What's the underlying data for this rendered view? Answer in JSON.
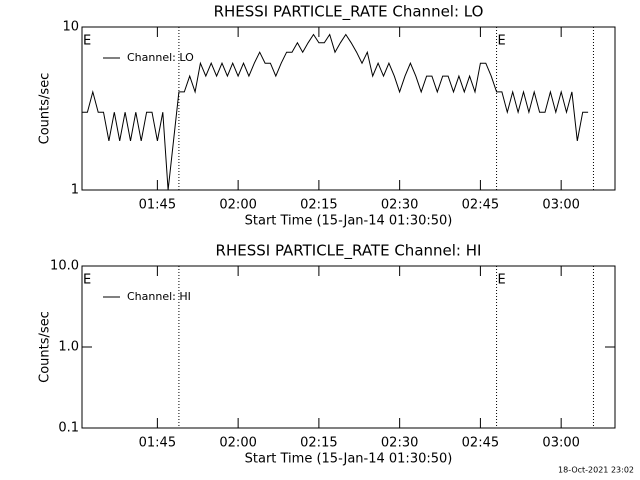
{
  "chart_data": [
    {
      "type": "line",
      "title": "RHESSI PARTICLE_RATE Channel: LO",
      "ylabel": "Counts/sec",
      "xlabel": "Start Time (15-Jan-14 01:30:50)",
      "log_y": true,
      "ylim": [
        1,
        10
      ],
      "yticks": [
        1,
        10
      ],
      "xlim": [
        "01:31",
        "03:10"
      ],
      "xticks": [
        "01:45",
        "02:00",
        "02:15",
        "02:30",
        "02:45",
        "03:00"
      ],
      "vlines": [
        "01:49",
        "02:48",
        "03:06"
      ],
      "annotations": [
        {
          "text": "E",
          "x": "01:31"
        },
        {
          "text": "E",
          "x": "02:48"
        }
      ],
      "legend": "upper left",
      "x": [
        "01:31",
        "01:32",
        "01:33",
        "01:34",
        "01:35",
        "01:36",
        "01:37",
        "01:38",
        "01:39",
        "01:40",
        "01:41",
        "01:42",
        "01:43",
        "01:44",
        "01:45",
        "01:46",
        "01:47",
        "01:48",
        "01:49",
        "01:50",
        "01:51",
        "01:52",
        "01:53",
        "01:54",
        "01:55",
        "01:56",
        "01:57",
        "01:58",
        "01:59",
        "02:00",
        "02:01",
        "02:02",
        "02:03",
        "02:04",
        "02:05",
        "02:06",
        "02:07",
        "02:08",
        "02:09",
        "02:10",
        "02:11",
        "02:12",
        "02:13",
        "02:14",
        "02:15",
        "02:16",
        "02:17",
        "02:18",
        "02:19",
        "02:20",
        "02:21",
        "02:22",
        "02:23",
        "02:24",
        "02:25",
        "02:26",
        "02:27",
        "02:28",
        "02:29",
        "02:30",
        "02:31",
        "02:32",
        "02:33",
        "02:34",
        "02:35",
        "02:36",
        "02:37",
        "02:38",
        "02:39",
        "02:40",
        "02:41",
        "02:42",
        "02:43",
        "02:44",
        "02:45",
        "02:46",
        "02:47",
        "02:48",
        "02:49",
        "02:50",
        "02:51",
        "02:52",
        "02:53",
        "02:54",
        "02:55",
        "02:56",
        "02:57",
        "02:58",
        "02:59",
        "03:00",
        "03:01",
        "03:02",
        "03:03",
        "03:04",
        "03:05"
      ],
      "series": [
        {
          "name": "Channel: LO",
          "color": "#000000",
          "values": [
            3,
            3,
            4,
            3,
            3,
            2,
            3,
            2,
            3,
            2,
            3,
            2,
            3,
            3,
            2,
            3,
            1,
            2,
            4,
            4,
            5,
            4,
            6,
            5,
            6,
            5,
            6,
            5,
            6,
            5,
            6,
            5,
            6,
            7,
            6,
            6,
            5,
            6,
            7,
            7,
            8,
            7,
            8,
            9,
            8,
            8,
            9,
            7,
            8,
            9,
            8,
            7,
            6,
            7,
            5,
            6,
            5,
            6,
            5,
            4,
            5,
            6,
            5,
            4,
            5,
            5,
            4,
            5,
            5,
            4,
            5,
            4,
            5,
            4,
            6,
            6,
            5,
            4,
            4,
            3,
            4,
            3,
            4,
            3,
            4,
            3,
            3,
            4,
            3,
            4,
            3,
            4,
            2,
            3,
            3
          ]
        }
      ]
    },
    {
      "type": "line",
      "title": "RHESSI PARTICLE_RATE Channel: HI",
      "ylabel": "Counts/sec",
      "xlabel": "Start Time (15-Jan-14 01:30:50)",
      "log_y": true,
      "ylim": [
        0.1,
        10
      ],
      "yticks": [
        0.1,
        {
          "value": 1,
          "label": "1.0"
        },
        {
          "value": 10,
          "label": "10.0"
        }
      ],
      "xlim": [
        "01:31",
        "03:10"
      ],
      "xticks": [
        "01:45",
        "02:00",
        "02:15",
        "02:30",
        "02:45",
        "03:00"
      ],
      "vlines": [
        "01:49",
        "02:48",
        "03:06"
      ],
      "annotations": [
        {
          "text": "E",
          "x": "01:31"
        },
        {
          "text": "E",
          "x": "02:48"
        }
      ],
      "legend": "upper left",
      "x": [],
      "series": [
        {
          "name": "Channel: HI",
          "color": "#000000",
          "values": []
        }
      ]
    }
  ],
  "footer": "18-Oct-2021 23:02"
}
